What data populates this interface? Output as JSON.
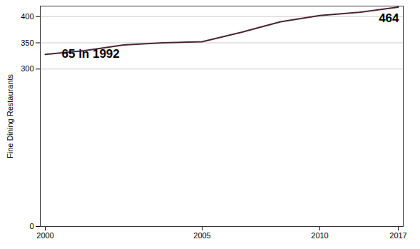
{
  "chart_data": {
    "type": "line",
    "y_label": "Fine Dining Restaurants",
    "categories": [
      "2000",
      null,
      null,
      null,
      "2005",
      null,
      null,
      "2010",
      null,
      "2017"
    ],
    "values": [
      328,
      335,
      346,
      350,
      352,
      370,
      390,
      402,
      408,
      418
    ],
    "color": "#4b2333",
    "ylim": [
      0,
      420
    ],
    "yticks": [
      0,
      300,
      350,
      400
    ],
    "grid": true,
    "annotations": [
      "65 in 1992",
      "464"
    ]
  }
}
